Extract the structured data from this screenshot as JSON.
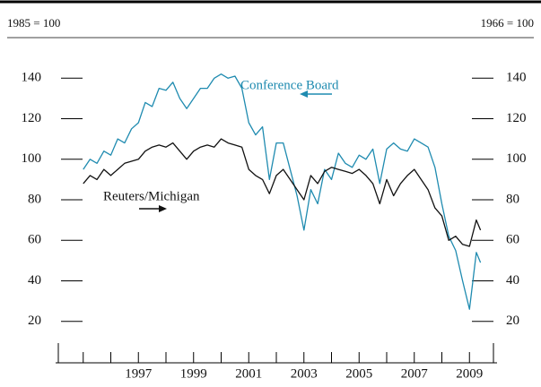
{
  "chart_data": {
    "type": "line",
    "left_axis_title": "1985 = 100",
    "right_axis_title": "1966 = 100",
    "annotations": [
      "Conference Board",
      "Reuters/Michigan"
    ],
    "x": [
      1995,
      1995.25,
      1995.5,
      1995.75,
      1996,
      1996.25,
      1996.5,
      1996.75,
      1997,
      1997.25,
      1997.5,
      1997.75,
      1998,
      1998.25,
      1998.5,
      1998.75,
      1999,
      1999.25,
      1999.5,
      1999.75,
      2000,
      2000.25,
      2000.5,
      2000.75,
      2001,
      2001.25,
      2001.5,
      2001.75,
      2002,
      2002.25,
      2002.5,
      2002.75,
      2003,
      2003.25,
      2003.5,
      2003.75,
      2004,
      2004.25,
      2004.5,
      2004.75,
      2005,
      2005.25,
      2005.5,
      2005.75,
      2006,
      2006.25,
      2006.5,
      2006.75,
      2007,
      2007.25,
      2007.5,
      2007.75,
      2008,
      2008.25,
      2008.5,
      2008.75,
      2009,
      2009.25,
      2009.4
    ],
    "series": [
      {
        "name": "Conference Board",
        "color": "#1f8bb0",
        "axis": "y",
        "values": [
          95,
          100,
          98,
          104,
          102,
          110,
          108,
          115,
          118,
          128,
          126,
          135,
          134,
          138,
          130,
          125,
          130,
          135,
          135,
          140,
          142,
          140,
          141,
          135,
          118,
          112,
          116,
          90,
          108,
          108,
          95,
          82,
          65,
          85,
          78,
          95,
          90,
          103,
          98,
          96,
          102,
          100,
          105,
          88,
          105,
          108,
          105,
          104,
          110,
          108,
          106,
          96,
          78,
          62,
          55,
          40,
          26,
          54,
          49
        ]
      },
      {
        "name": "Reuters/Michigan",
        "color": "#111111",
        "axis": "y2",
        "values": [
          88,
          92,
          90,
          95,
          92,
          95,
          98,
          99,
          100,
          104,
          106,
          107,
          106,
          108,
          104,
          100,
          104,
          106,
          107,
          106,
          110,
          108,
          107,
          106,
          95,
          92,
          90,
          83,
          92,
          95,
          90,
          85,
          80,
          92,
          88,
          94,
          96,
          95,
          94,
          93,
          95,
          92,
          88,
          78,
          90,
          82,
          88,
          92,
          95,
          90,
          85,
          76,
          72,
          60,
          62,
          58,
          57,
          70,
          65
        ]
      }
    ],
    "xlim": [
      1994,
      2010
    ],
    "xticks": [
      1997,
      1999,
      2001,
      2003,
      2005,
      2007,
      2009
    ],
    "xminor_ticks": [
      1995,
      1996,
      1998,
      2000,
      2002,
      2004,
      2006,
      2008
    ],
    "ylim": [
      0,
      160
    ],
    "yticks": [
      20,
      40,
      60,
      80,
      100,
      120,
      140
    ],
    "y2lim": [
      0,
      160
    ],
    "y2ticks": [
      20,
      40,
      60,
      80,
      100,
      120,
      140
    ]
  }
}
